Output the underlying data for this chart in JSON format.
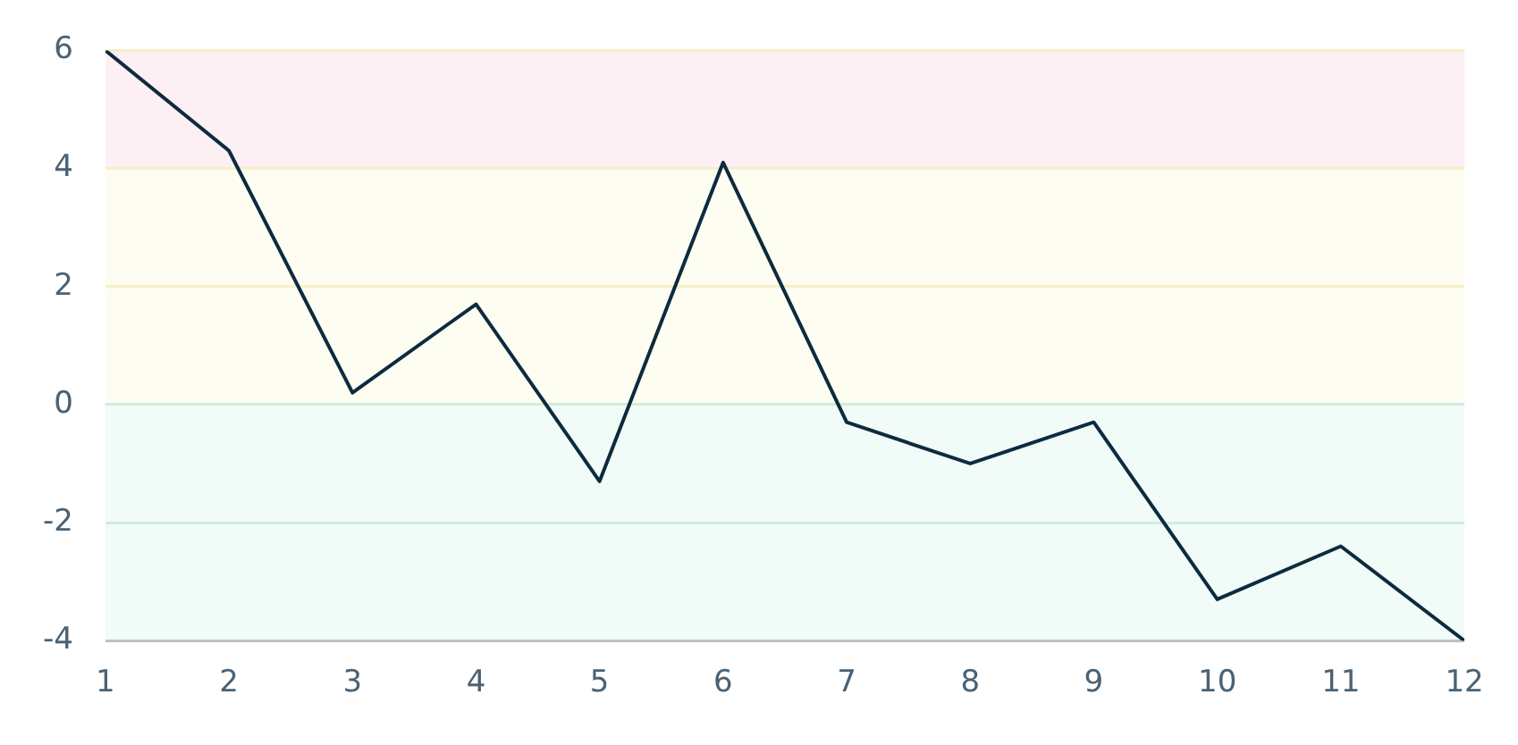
{
  "chart_data": {
    "type": "line",
    "x": [
      1,
      2,
      3,
      4,
      5,
      6,
      7,
      8,
      9,
      10,
      11,
      12
    ],
    "series": [
      {
        "color": "#0d2b3e",
        "values": [
          6,
          4.3,
          0.2,
          1.7,
          -1.3,
          4.1,
          -0.3,
          -1.0,
          -0.3,
          -3.3,
          -2.4,
          -4
        ]
      }
    ],
    "xlim": [
      1,
      12
    ],
    "xticks": [
      1,
      2,
      3,
      4,
      5,
      6,
      7,
      8,
      9,
      10,
      11,
      12
    ],
    "ylim": [
      -4,
      6
    ],
    "yticks": [
      -4,
      -2,
      0,
      2,
      4,
      6
    ],
    "bands": [
      {
        "axis": "y",
        "from": 4,
        "to": 6,
        "color": "#fdf0f4"
      },
      {
        "axis": "y",
        "from": 0,
        "to": 4,
        "color": "#fefdf1"
      },
      {
        "axis": "y",
        "from": -4,
        "to": 0,
        "color": "#f1fbf7"
      }
    ],
    "grid": "y",
    "legend": false,
    "marker": "none",
    "line_style": "solid"
  }
}
